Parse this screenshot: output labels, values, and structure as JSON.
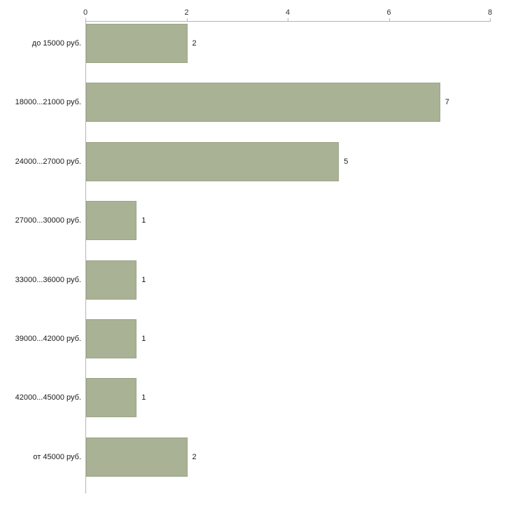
{
  "chart_data": {
    "type": "bar",
    "orientation": "horizontal",
    "title": "",
    "xlabel": "",
    "ylabel": "",
    "categories": [
      "до 15000 руб.",
      "18000...21000 руб.",
      "24000...27000 руб.",
      "27000...30000 руб.",
      "33000...36000 руб.",
      "39000...42000 руб.",
      "42000...45000 руб.",
      "от 45000 руб."
    ],
    "values": [
      2,
      7,
      5,
      1,
      1,
      1,
      1,
      2
    ],
    "xlim": [
      0,
      8
    ],
    "xticks": [
      0,
      2,
      4,
      6,
      8
    ],
    "grid": false,
    "legend": "none",
    "bar_color": "#a9b294",
    "bar_border_color": "#9aa487",
    "axis_color": "#b3b3b3",
    "text_color": "#1a1a1a"
  }
}
